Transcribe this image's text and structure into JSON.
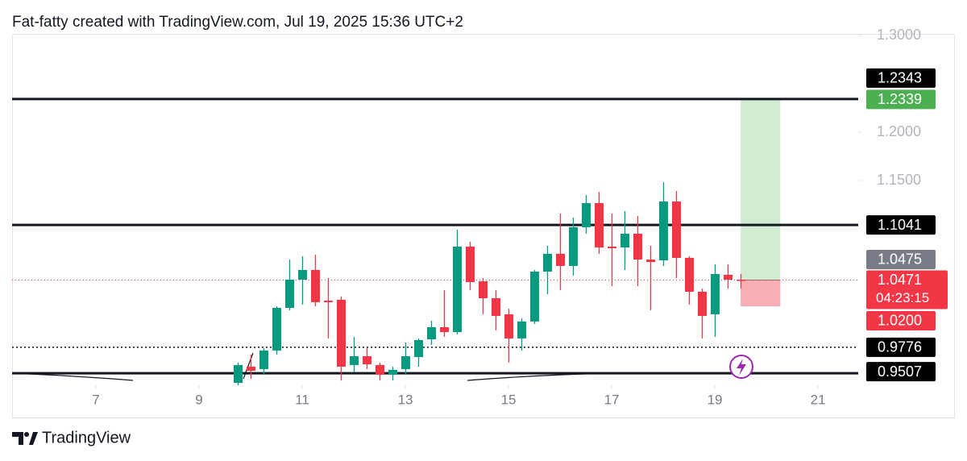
{
  "header": {
    "title": "Fat-fatty created with TradingView.com, Jul 19, 2025 15:36 UTC+2"
  },
  "chart_data": {
    "type": "candlestick",
    "x": [
      9.75,
      10,
      10.25,
      10.5,
      10.75,
      11,
      11.25,
      11.5,
      11.75,
      12,
      12.25,
      12.5,
      12.75,
      13,
      13.25,
      13.5,
      13.75,
      14,
      14.25,
      14.5,
      14.75,
      15,
      15.25,
      15.5,
      15.75,
      16,
      16.25,
      16.5,
      16.75,
      17,
      17.25,
      17.5,
      17.75,
      18,
      18.25,
      18.5,
      18.75,
      19,
      19.25,
      19.5
    ],
    "open": [
      0.9408,
      0.9575,
      0.955,
      0.9742,
      1.0183,
      1.0475,
      1.0575,
      1.0258,
      1.0267,
      0.9592,
      0.9683,
      0.9592,
      0.9492,
      0.955,
      0.9675,
      0.9858,
      0.9983,
      0.9933,
      1.0817,
      1.0458,
      1.0283,
      1.0117,
      0.9867,
      1.0042,
      1.0558,
      1.0742,
      1.0617,
      1.1017,
      1.1267,
      1.0817,
      1.0808,
      1.095,
      1.0683,
      1.0675,
      1.1283,
      1.07,
      1.035,
      1.0117,
      1.0525,
      1.0475
    ],
    "high": [
      0.9617,
      0.97,
      0.9767,
      1.02,
      1.0683,
      1.0717,
      1.0733,
      1.0492,
      1.03,
      0.9883,
      0.9767,
      0.9617,
      0.9575,
      0.9825,
      0.9867,
      1.005,
      1.0367,
      1.0992,
      1.0867,
      1.0492,
      1.0367,
      1.0175,
      1.0075,
      1.0575,
      1.0825,
      1.1158,
      1.1117,
      1.135,
      1.1383,
      1.1158,
      1.1183,
      1.1133,
      1.0825,
      1.1483,
      1.1392,
      1.0717,
      1.0383,
      1.0633,
      1.0633,
      1.0533
    ],
    "low": [
      0.9383,
      0.945,
      0.9492,
      0.97,
      1.0158,
      1.0217,
      1.02,
      0.9867,
      0.9433,
      0.9517,
      0.955,
      0.9433,
      0.9433,
      0.9492,
      0.9575,
      0.98,
      0.9883,
      0.9908,
      1.0367,
      1.0117,
      0.995,
      0.9617,
      0.9742,
      1.0017,
      1.0325,
      1.0367,
      1.0517,
      1.095,
      1.0742,
      1.0408,
      1.0575,
      1.0408,
      1.0158,
      1.0617,
      1.0492,
      1.0217,
      0.9867,
      0.9883,
      1.0383,
      1.0383
    ],
    "close": [
      0.9592,
      0.9533,
      0.9742,
      1.0183,
      1.0475,
      1.0575,
      1.0242,
      1.0242,
      0.9575,
      0.9683,
      0.96,
      0.9492,
      0.9542,
      0.9683,
      0.985,
      0.9983,
      0.9933,
      1.0817,
      1.045,
      1.0283,
      1.01,
      0.9867,
      1.0042,
      1.0558,
      1.0742,
      1.0617,
      1.1017,
      1.1267,
      1.0808,
      1.08,
      1.095,
      1.0683,
      1.0658,
      1.1283,
      1.07,
      1.035,
      1.01,
      1.0533,
      1.0475,
      1.0471
    ],
    "up_color": "#089981",
    "down_color": "#f23645",
    "xlim": [
      5.375,
      21.78
    ],
    "xticks": [
      7,
      9,
      11,
      13,
      15,
      17,
      19,
      21
    ],
    "ylim": [
      0.9383,
      1.3017
    ],
    "yticks": [
      {
        "value": 1.3,
        "label": "1.3000"
      },
      {
        "value": 1.2,
        "label": "1.2000"
      },
      {
        "value": 1.15,
        "label": "1.1500"
      }
    ],
    "levels": [
      1.2343,
      1.1041,
      0.9507
    ],
    "dotted_level": 0.9776,
    "prev_close": 1.0475,
    "last_price": {
      "value": 1.0471,
      "countdown": "04:23:15"
    },
    "position": {
      "x": [
        19.5,
        20.27
      ],
      "entry": 1.0471,
      "target": 1.2339,
      "stop": {
        "value": 1.02,
        "label": "1.0200"
      }
    }
  },
  "footer": {
    "brand": "TradingView"
  }
}
